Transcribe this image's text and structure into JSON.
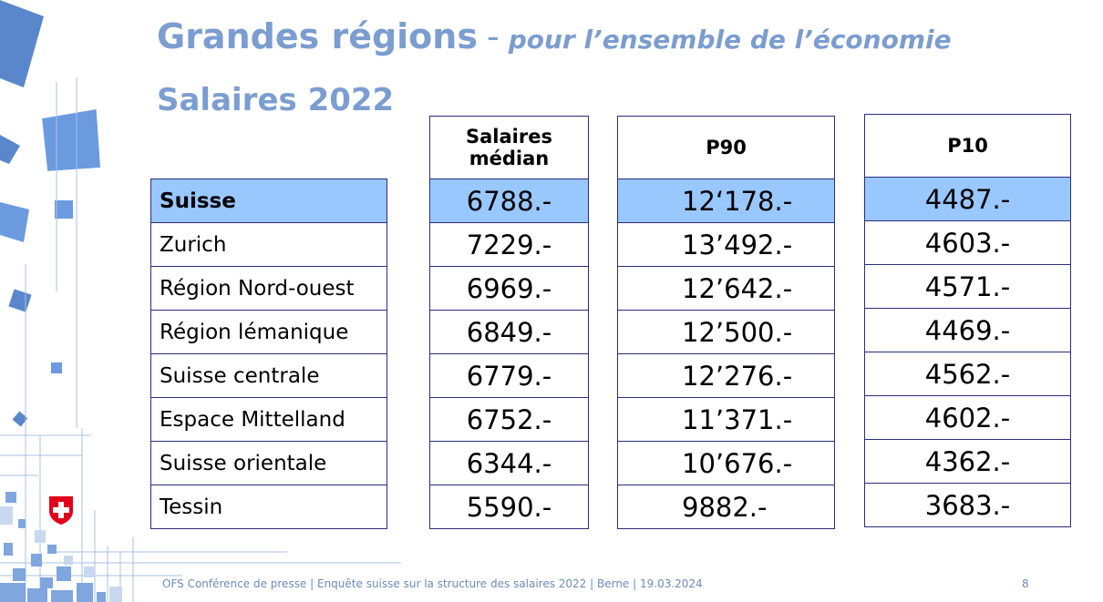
{
  "title": {
    "main": "Grandes régions",
    "dash": "-",
    "sub": "pour l’ensemble de l’économie"
  },
  "subtitle": "Salaires 2022",
  "table": {
    "columns": [
      "Salaires médian",
      "P90",
      "P10"
    ],
    "rows": [
      {
        "region": "Suisse",
        "median": "6788.-",
        "p90": "12‘178.-",
        "p10": "4487.-",
        "highlight": true
      },
      {
        "region": "Zurich",
        "median": "7229.-",
        "p90": "13’492.-",
        "p10": "4603.-"
      },
      {
        "region": "Région Nord-ouest",
        "median": "6969.-",
        "p90": "12’642.-",
        "p10": "4571.-"
      },
      {
        "region": "Région lémanique",
        "median": "6849.-",
        "p90": "12’500.-",
        "p10": "4469.-"
      },
      {
        "region": "Suisse centrale",
        "median": "6779.-",
        "p90": "12’276.-",
        "p10": "4562.-"
      },
      {
        "region": "Espace Mittelland",
        "median": "6752.-",
        "p90": "11’371.-",
        "p10": "4602.-"
      },
      {
        "region": "Suisse orientale",
        "median": "6344.-",
        "p90": "10’676.-",
        "p10": "4362.-"
      },
      {
        "region": "Tessin",
        "median": "5590.-",
        "p90": "9882.-",
        "p10": "3683.-"
      }
    ]
  },
  "footer": {
    "text": "OFS Conférence de presse | Enquête suisse sur la structure des salaires 2022 | Berne | 19.03.2024",
    "page_number": "8"
  },
  "colors": {
    "title": "#7b9dd0",
    "highlight_row": "#99c7ff",
    "table_border": "#2a2d7c",
    "swiss_red": "#e2001a"
  },
  "icons": [
    "swiss-cross-icon"
  ]
}
